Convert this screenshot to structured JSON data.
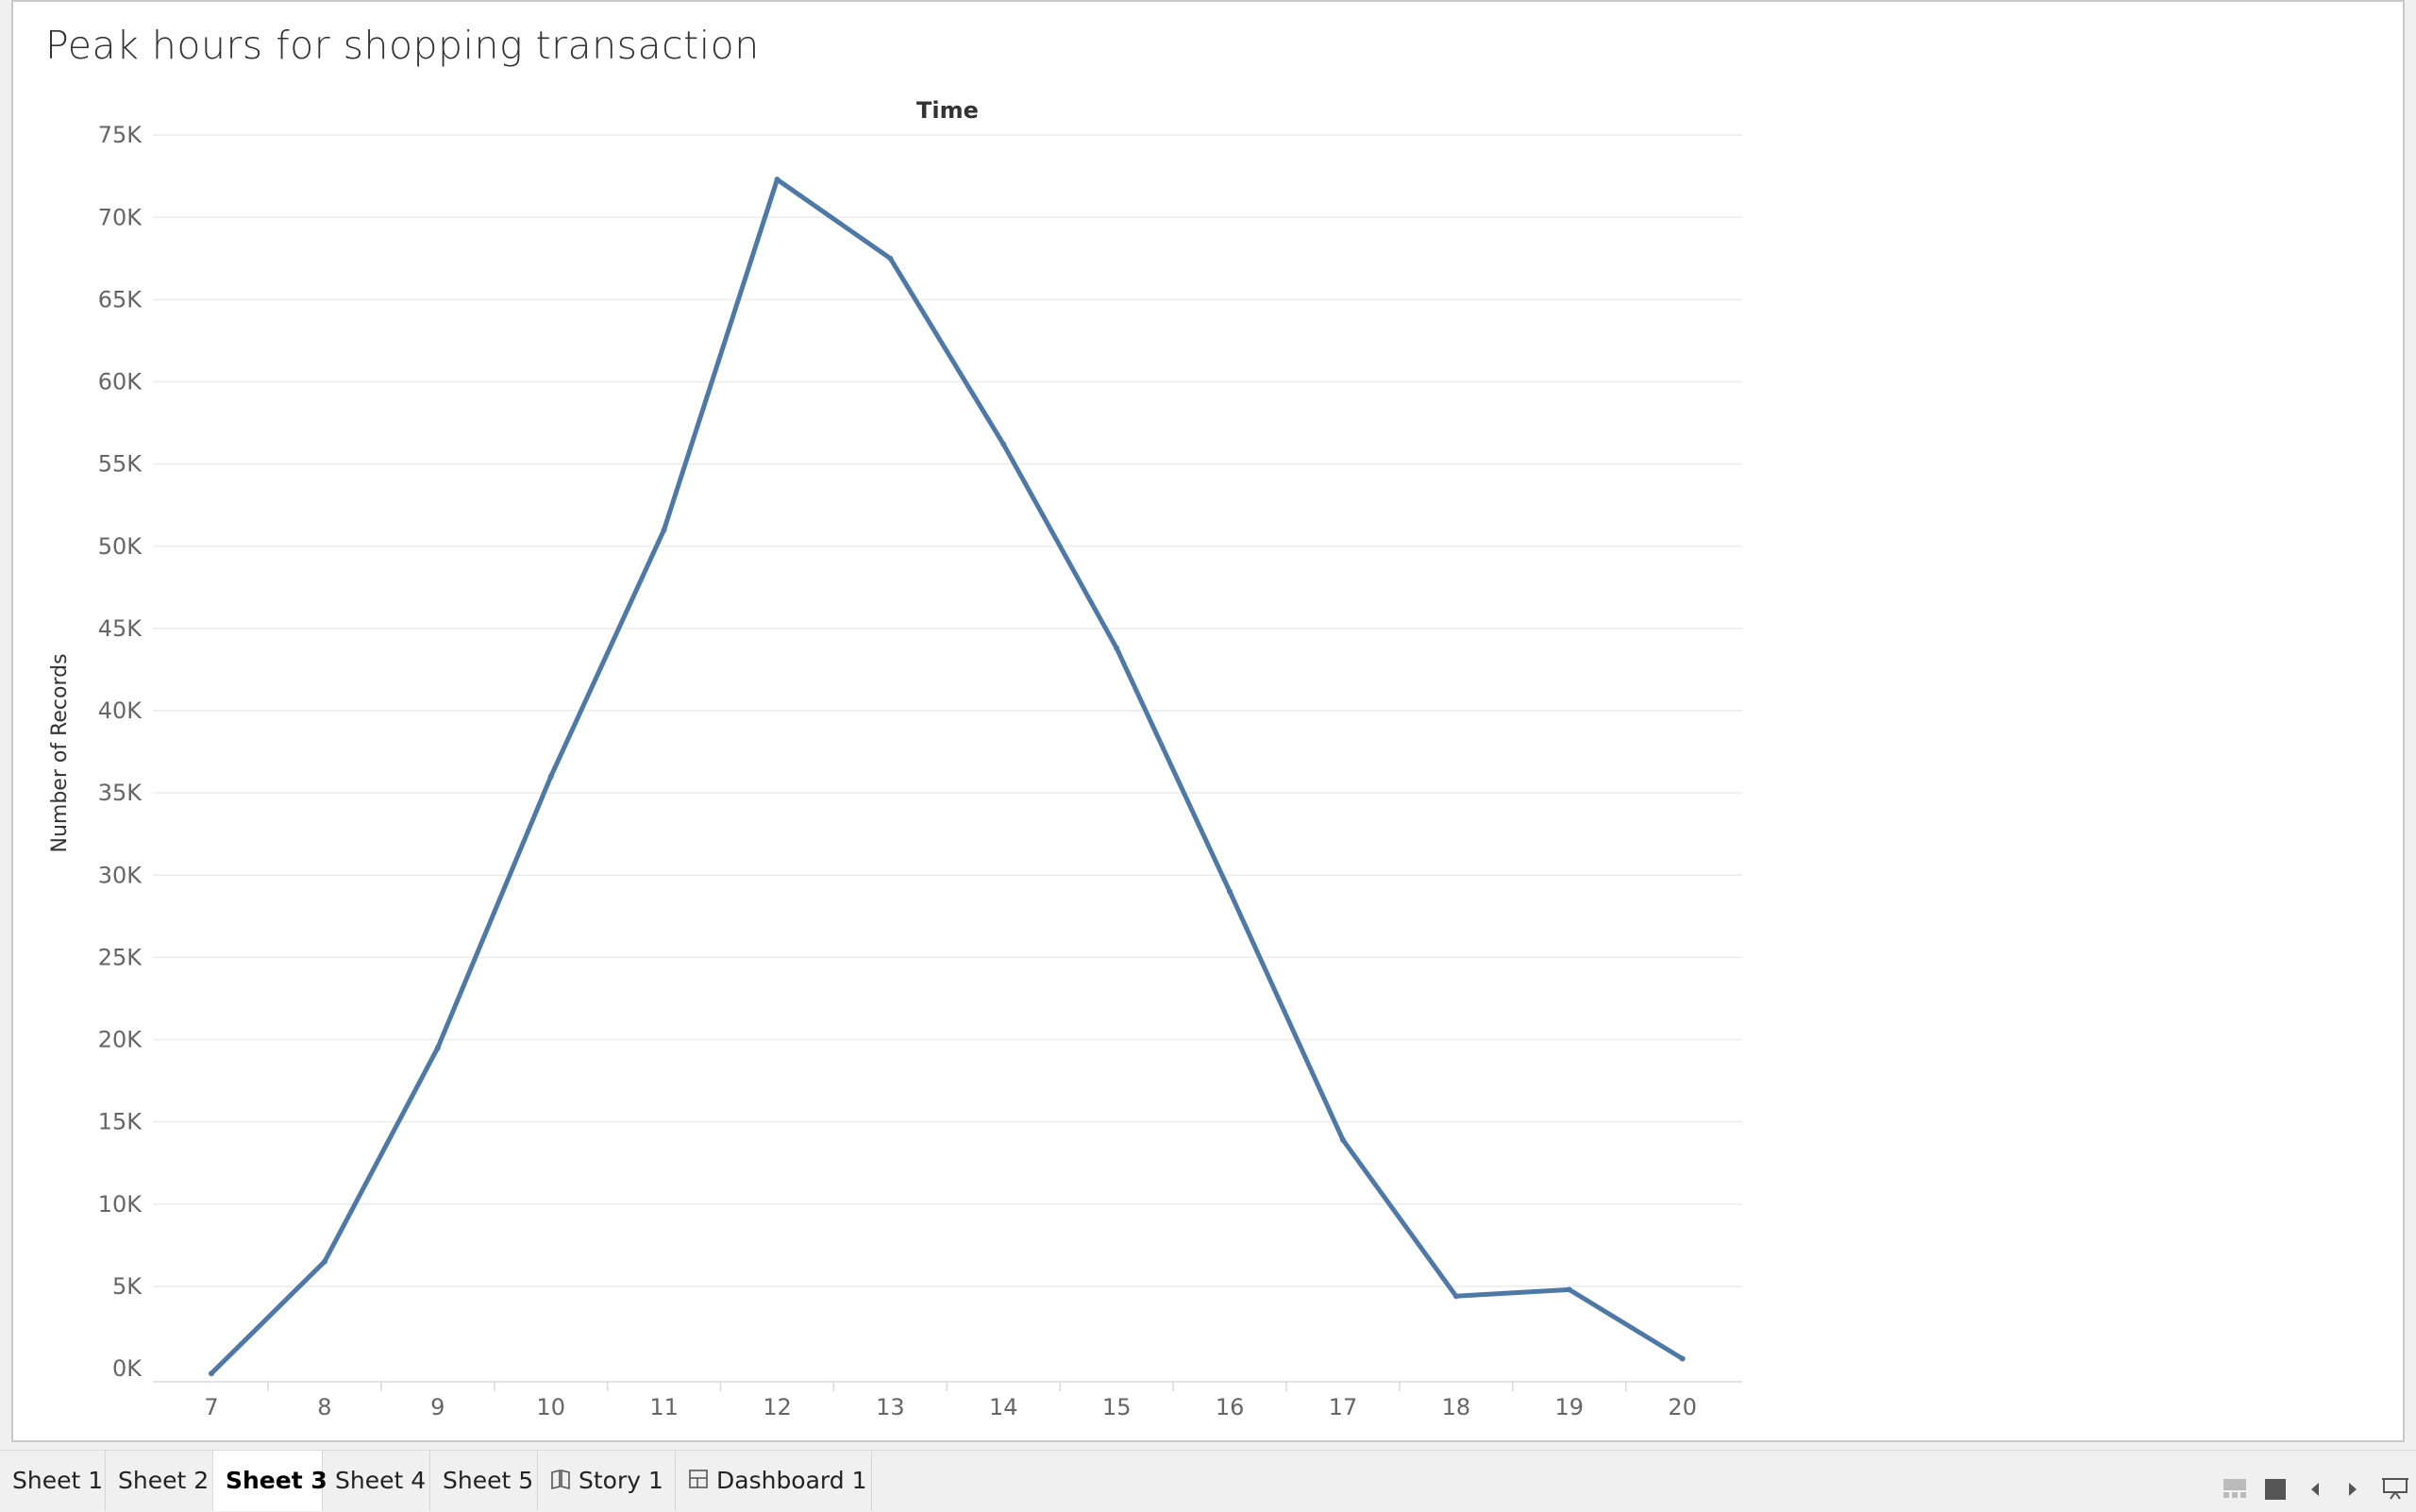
{
  "sheet": {
    "title": "Peak hours for shopping transaction"
  },
  "chart_data": {
    "type": "line",
    "title": "Peak hours for shopping transaction",
    "header": "Time",
    "ylabel": "Number of Records",
    "x": [
      7,
      8,
      9,
      10,
      11,
      12,
      13,
      14,
      15,
      16,
      17,
      18,
      19,
      20
    ],
    "y": [
      -300,
      6500,
      19500,
      36000,
      51000,
      72300,
      67500,
      56200,
      43800,
      29000,
      13900,
      4400,
      4800,
      600
    ],
    "y_ticks": [
      "0K",
      "5K",
      "10K",
      "15K",
      "20K",
      "25K",
      "30K",
      "35K",
      "40K",
      "45K",
      "50K",
      "55K",
      "60K",
      "65K",
      "70K",
      "75K"
    ],
    "ylim": [
      -1000,
      75000
    ],
    "line_color": "#4e79a7",
    "grid": true
  },
  "tabs": [
    {
      "label": "Sheet 1",
      "active": false
    },
    {
      "label": "Sheet 2",
      "active": false
    },
    {
      "label": "Sheet 3",
      "active": true
    },
    {
      "label": "Sheet 4",
      "active": false
    },
    {
      "label": "Sheet 5",
      "active": false
    },
    {
      "label": "Story 1",
      "active": false,
      "icon": "story-icon"
    },
    {
      "label": "Dashboard 1",
      "active": false,
      "icon": "dashboard-icon"
    }
  ],
  "controls": [
    "show-sheet-sorter-icon",
    "show-tabs-icon",
    "previous-sheet-icon",
    "next-sheet-icon",
    "presentation-mode-icon"
  ]
}
